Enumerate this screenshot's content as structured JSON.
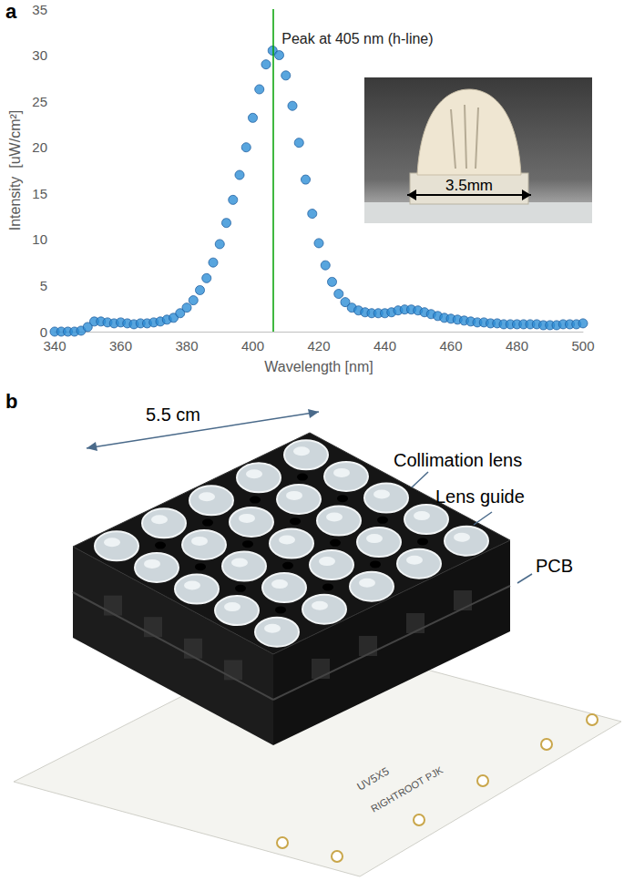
{
  "chart_data": {
    "type": "scatter",
    "x_label": "Wavelength [nm]",
    "y_label": "Intensity  [uW/cm²]",
    "x": [
      340,
      342,
      344,
      346,
      348,
      350,
      352,
      354,
      356,
      358,
      360,
      362,
      364,
      366,
      368,
      370,
      372,
      374,
      376,
      378,
      380,
      382,
      384,
      386,
      388,
      390,
      392,
      394,
      396,
      398,
      400,
      402,
      404,
      406,
      408,
      410,
      412,
      414,
      416,
      418,
      420,
      422,
      424,
      426,
      428,
      430,
      432,
      434,
      436,
      438,
      440,
      442,
      444,
      446,
      448,
      450,
      452,
      454,
      456,
      458,
      460,
      462,
      464,
      466,
      468,
      470,
      472,
      474,
      476,
      478,
      480,
      482,
      484,
      486,
      488,
      490,
      492,
      494,
      496,
      498,
      500
    ],
    "values": [
      0,
      0,
      0,
      0,
      0.1,
      0.5,
      1.1,
      1.1,
      1.0,
      0.9,
      1.0,
      0.9,
      0.8,
      0.9,
      0.9,
      1.0,
      1.1,
      1.3,
      1.5,
      2.0,
      2.6,
      3.4,
      4.5,
      5.8,
      7.5,
      9.5,
      11.8,
      14.3,
      17.0,
      20.0,
      23.2,
      26.3,
      29.0,
      30.5,
      30.0,
      27.8,
      24.5,
      20.5,
      16.5,
      12.8,
      9.6,
      7.2,
      5.4,
      4.1,
      3.2,
      2.6,
      2.3,
      2.1,
      2.0,
      2.0,
      2.0,
      2.1,
      2.3,
      2.4,
      2.4,
      2.3,
      2.1,
      1.9,
      1.7,
      1.5,
      1.4,
      1.3,
      1.2,
      1.1,
      1.0,
      1.0,
      0.9,
      0.9,
      0.8,
      0.8,
      0.8,
      0.8,
      0.8,
      0.8,
      0.7,
      0.7,
      0.7,
      0.8,
      0.8,
      0.8,
      0.9
    ],
    "color": "#2e8fd6",
    "marker": "circle",
    "xlim": [
      340,
      500
    ],
    "xticks": [
      340,
      360,
      380,
      400,
      420,
      440,
      460,
      480,
      500
    ],
    "ylim": [
      0,
      35
    ],
    "yticks": [
      0,
      5,
      10,
      15,
      20,
      25,
      30,
      35
    ],
    "grid": false,
    "annotations": [
      {
        "text": "Peak at 405 nm (h-line)",
        "x": 406,
        "color": "#00a000"
      }
    ]
  },
  "figure": {
    "panel_labels": [
      "a",
      "b"
    ],
    "inset_dimension": "3.5mm",
    "photo_labels": {
      "width": "5.5 cm",
      "lens": "Collimation lens",
      "guide": "Lens guide",
      "board": "PCB"
    },
    "board_print": [
      "UV5X5",
      "RIGHTROOT PJK"
    ]
  }
}
